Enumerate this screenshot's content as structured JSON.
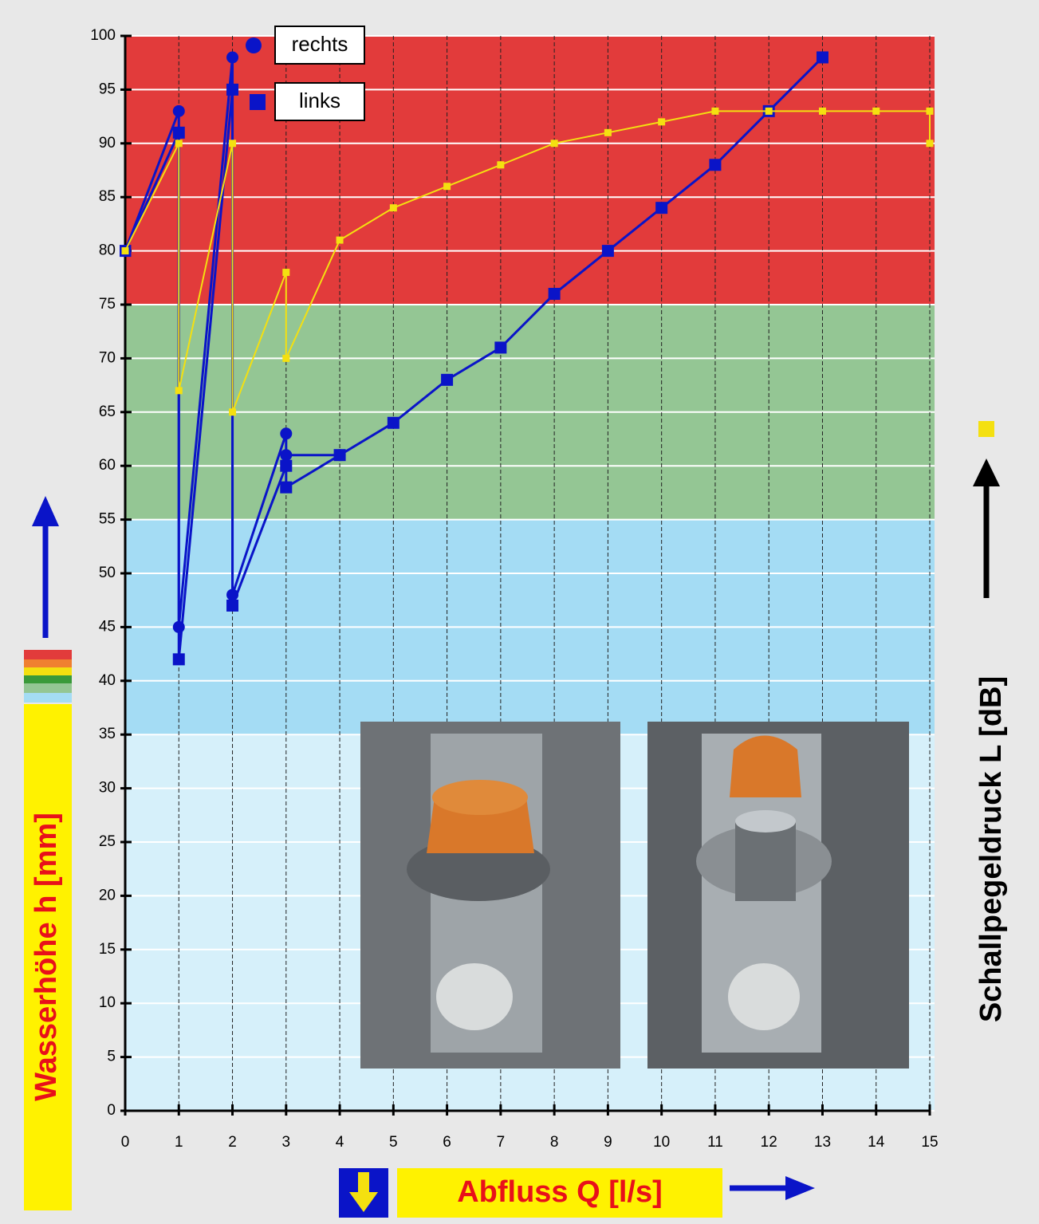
{
  "chart_data": {
    "type": "line",
    "x_label": "Abfluss Q [l/s]",
    "y_label": "Wasserhöhe h [mm]",
    "y2_label": "Schallpegeldruck L [dB]",
    "xlim": [
      0,
      15
    ],
    "xticks": [
      0,
      1,
      2,
      3,
      4,
      5,
      6,
      7,
      8,
      9,
      10,
      11,
      12,
      13,
      14,
      15
    ],
    "ylim": [
      0,
      100
    ],
    "yticks": [
      0,
      5,
      10,
      15,
      20,
      25,
      30,
      35,
      40,
      45,
      50,
      55,
      60,
      65,
      70,
      75,
      80,
      85,
      90,
      95,
      100
    ],
    "grid": true,
    "bands": [
      {
        "from": 75,
        "to": 100,
        "color": "#e23b3b"
      },
      {
        "from": 55,
        "to": 75,
        "color": "#94c694"
      },
      {
        "from": 35,
        "to": 55,
        "color": "#a4dcf4"
      },
      {
        "from": 0,
        "to": 35,
        "color": "#d6f0fa"
      }
    ],
    "series": [
      {
        "name": "rechts",
        "marker": "circle",
        "color": "#0a14c8",
        "x": [
          0,
          1,
          1,
          2,
          2,
          3,
          3,
          4
        ],
        "values": [
          80,
          93,
          45,
          98,
          48,
          63,
          61,
          61
        ]
      },
      {
        "name": "links",
        "marker": "square",
        "color": "#0a14c8",
        "x": [
          0,
          1,
          1,
          2,
          2,
          3,
          3,
          4,
          5,
          6,
          7,
          8,
          9,
          10,
          11,
          12,
          13
        ],
        "values": [
          80,
          91,
          42,
          95,
          47,
          60,
          58,
          61,
          64,
          68,
          71,
          76,
          80,
          84,
          88,
          93,
          98
        ]
      },
      {
        "marker": "small-square",
        "color": "#f4e010",
        "axis": "y2",
        "x": [
          0,
          1,
          1,
          2,
          2,
          3,
          3,
          4,
          5,
          6,
          7,
          8,
          9,
          10,
          11,
          12,
          13,
          14,
          15,
          15
        ],
        "values": [
          80,
          90,
          67,
          90,
          65,
          78,
          70,
          81,
          84,
          86,
          88,
          90,
          91,
          92,
          93,
          93,
          93,
          93,
          93,
          90
        ]
      }
    ]
  }
}
